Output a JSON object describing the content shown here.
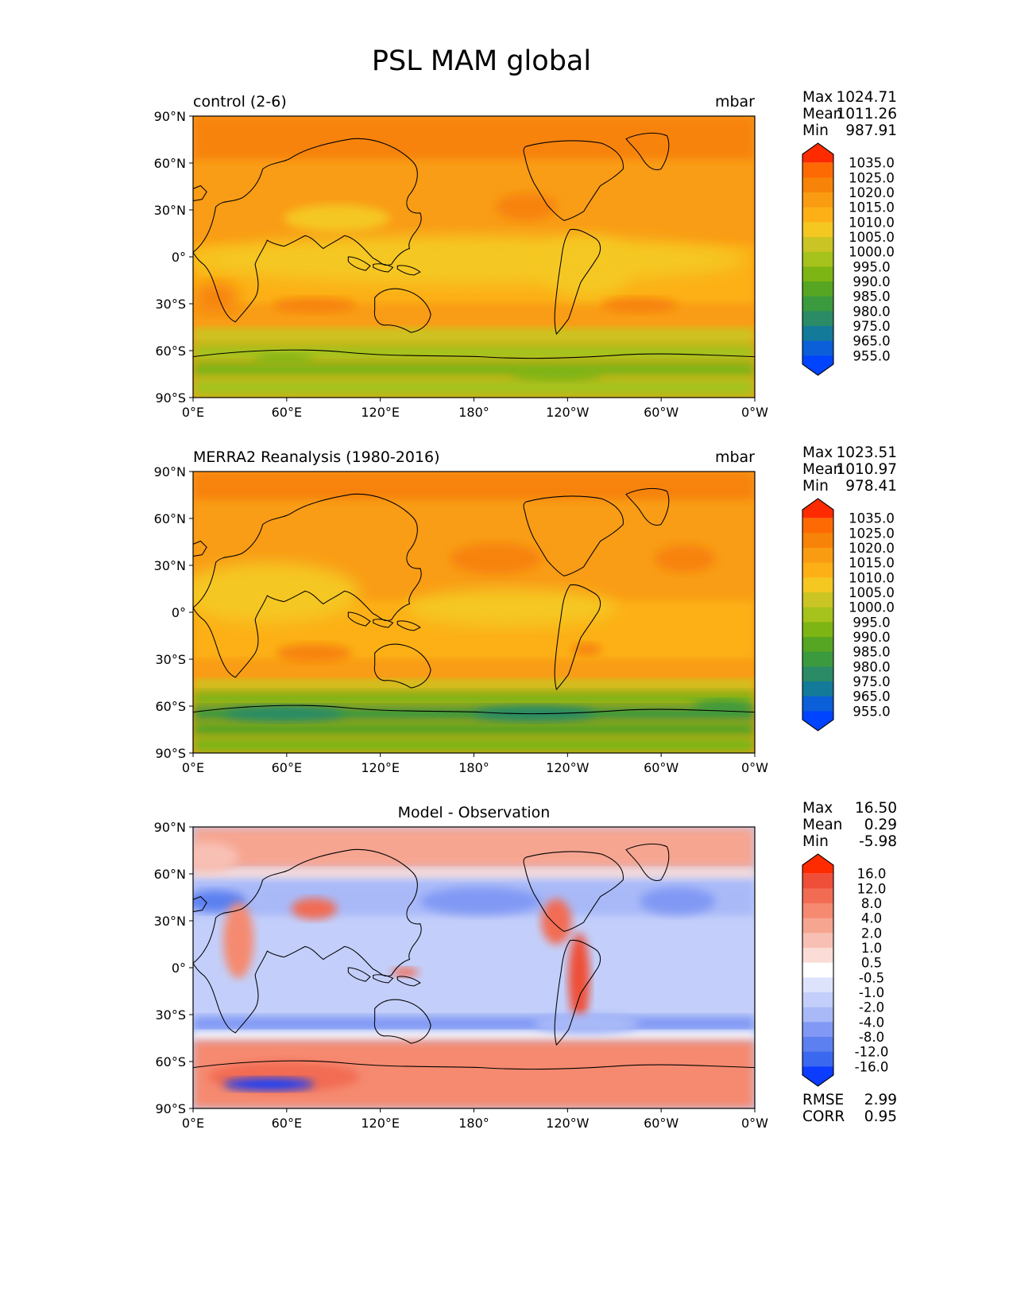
{
  "figure_title": "PSL MAM global",
  "lat_labels": [
    "90°N",
    "60°N",
    "30°N",
    "0°",
    "30°S",
    "60°S",
    "90°S"
  ],
  "lon_labels": [
    "0°E",
    "60°E",
    "120°E",
    "180°",
    "120°W",
    "60°W",
    "0°W"
  ],
  "colors": {
    "psl": [
      "#0044ff",
      "#0b5fd8",
      "#137a9a",
      "#2a8b66",
      "#3b9a3e",
      "#56a523",
      "#7db514",
      "#a6c21c",
      "#cac524",
      "#f5c721",
      "#fcb016",
      "#f99c12",
      "#f78309",
      "#fd6a03",
      "#ff2b00"
    ],
    "diff": [
      "#0b3cff",
      "#3a69f0",
      "#5c80f0",
      "#8199f4",
      "#a9b9f8",
      "#c3cffa",
      "#dde3fb",
      "#ffffff",
      "#fbdcd6",
      "#f8c0b4",
      "#f6a591",
      "#f58a70",
      "#f26c53",
      "#ef4f38",
      "#ff2b00"
    ]
  },
  "panels": [
    {
      "name": "control",
      "left_title": "control (2-6)",
      "right_title": "mbar",
      "center_title": "",
      "stats": [
        {
          "label": "Max",
          "value": "1024.71"
        },
        {
          "label": "Mean",
          "value": "1011.26"
        },
        {
          "label": "Min",
          "value": "987.91"
        }
      ],
      "colorbar_levels": [
        "1035.0",
        "1025.0",
        "1020.0",
        "1015.0",
        "1010.0",
        "1005.0",
        "1000.0",
        "995.0",
        "990.0",
        "985.0",
        "980.0",
        "975.0",
        "965.0",
        "955.0"
      ],
      "extra_stats": []
    },
    {
      "name": "merra2",
      "left_title": "MERRA2 Reanalysis (1980-2016)",
      "right_title": "mbar",
      "center_title": "",
      "stats": [
        {
          "label": "Max",
          "value": "1023.51"
        },
        {
          "label": "Mean",
          "value": "1010.97"
        },
        {
          "label": "Min",
          "value": "978.41"
        }
      ],
      "colorbar_levels": [
        "1035.0",
        "1025.0",
        "1020.0",
        "1015.0",
        "1010.0",
        "1005.0",
        "1000.0",
        "995.0",
        "990.0",
        "985.0",
        "980.0",
        "975.0",
        "965.0",
        "955.0"
      ],
      "extra_stats": []
    },
    {
      "name": "difference",
      "left_title": "",
      "right_title": "",
      "center_title": "Model - Observation",
      "stats": [
        {
          "label": "Max",
          "value": "16.50"
        },
        {
          "label": "Mean",
          "value": "0.29"
        },
        {
          "label": "Min",
          "value": "-5.98"
        }
      ],
      "colorbar_levels": [
        "16.0",
        "12.0",
        "8.0",
        "4.0",
        "2.0",
        "1.0",
        "0.5",
        "-0.5",
        "-1.0",
        "-2.0",
        "-4.0",
        "-8.0",
        "-12.0",
        "-16.0"
      ],
      "extra_stats": [
        {
          "label": "RMSE",
          "value": "2.99"
        },
        {
          "label": "CORR",
          "value": "0.95"
        }
      ]
    }
  ]
}
